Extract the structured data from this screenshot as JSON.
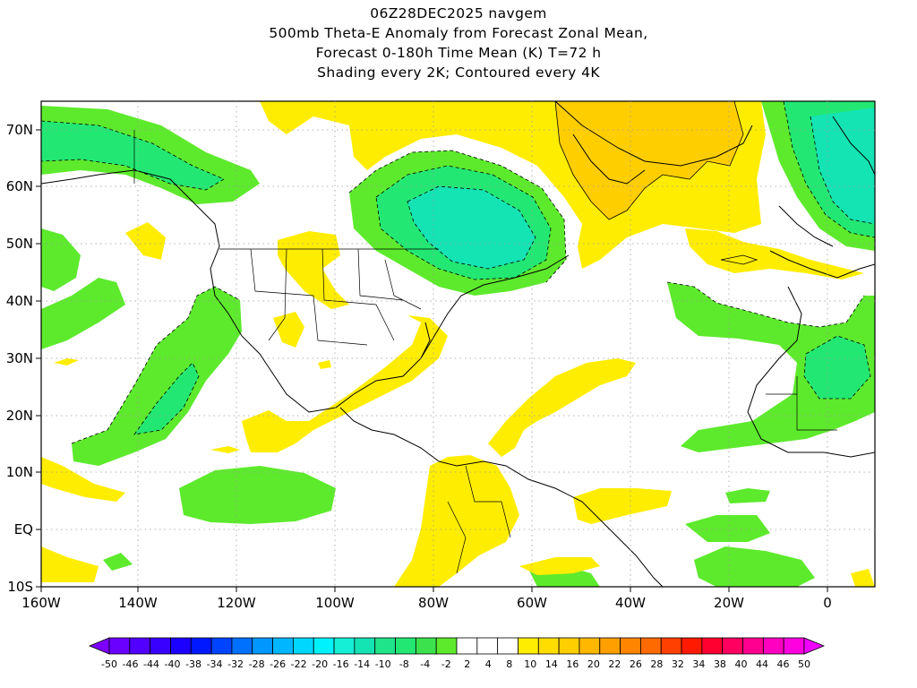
{
  "title": {
    "line1": "06Z28DEC2025 navgem",
    "line2": "500mb Theta-E Anomaly from Forecast Zonal Mean,",
    "line3": "Forecast 0-180h Time Mean (K) T=72 h",
    "line4": "Shading every 2K; Contoured every 4K"
  },
  "map": {
    "lon_labels": [
      "160W",
      "140W",
      "120W",
      "100W",
      "80W",
      "60W",
      "40W",
      "20W",
      "0"
    ],
    "lat_labels": [
      "70N",
      "60N",
      "50N",
      "40N",
      "30N",
      "20N",
      "10N",
      "EQ",
      "10S"
    ],
    "fill_colors": {
      "neg_2_4": "#5dea2c",
      "neg_6_10": "#22e873",
      "neg_12_14": "#14e3b4",
      "neg_16_20": "#12e6e0",
      "pos_4_6": "#ffed00",
      "pos_8_10": "#ffce00"
    }
  },
  "colorbar": {
    "labels": [
      "-50",
      "-46",
      "-44",
      "-40",
      "-38",
      "-34",
      "-32",
      "-28",
      "-26",
      "-22",
      "-20",
      "-16",
      "-14",
      "-10",
      "-8",
      "-4",
      "-2",
      "2",
      "4",
      "8",
      "10",
      "14",
      "16",
      "20",
      "22",
      "26",
      "28",
      "32",
      "34",
      "38",
      "40",
      "44",
      "46",
      "50"
    ],
    "colors": [
      "#7d00ff",
      "#6a00ff",
      "#5100ff",
      "#3a00ff",
      "#1c00ff",
      "#0018ff",
      "#0044ff",
      "#0070ff",
      "#0097ff",
      "#00b7ff",
      "#00d7ff",
      "#00f2ff",
      "#14efd6",
      "#14e3b4",
      "#1fe48a",
      "#22e873",
      "#3be24d",
      "#5dea2c",
      "#ffffff",
      "#ffffff",
      "#ffffff",
      "#ffed00",
      "#ffdd00",
      "#ffce00",
      "#ffb700",
      "#ff9f00",
      "#ff8500",
      "#ff6a00",
      "#ff4000",
      "#ff1a00",
      "#ff0030",
      "#ff0060",
      "#ff0090",
      "#ff00c0",
      "#ff00e0",
      "#f000ff"
    ]
  }
}
